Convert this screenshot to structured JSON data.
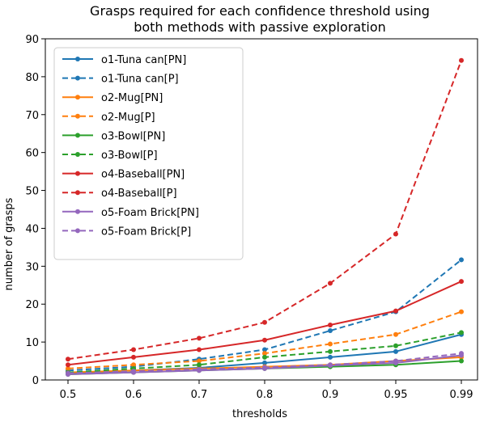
{
  "chart_data": {
    "type": "line",
    "title_line1": "Grasps required for each confidence threshold using",
    "title_line2": "both methods with passive exploration",
    "xlabel": "thresholds",
    "ylabel": "number of grasps",
    "categories": [
      "0.5",
      "0.6",
      "0.7",
      "0.8",
      "0.9",
      "0.95",
      "0.99"
    ],
    "ylim": [
      0,
      90
    ],
    "yticks": [
      0,
      10,
      20,
      30,
      40,
      50,
      60,
      70,
      80,
      90
    ],
    "grid": false,
    "legend_position": "top-left",
    "series": [
      {
        "name": "o1-Tuna can[PN]",
        "color": "#1f77b4",
        "dash": false,
        "values": [
          1.8,
          2.5,
          3.2,
          4.5,
          6.0,
          7.5,
          12.0
        ]
      },
      {
        "name": "o1-Tuna can[P]",
        "color": "#1f77b4",
        "dash": true,
        "values": [
          2.5,
          3.5,
          5.5,
          8.0,
          13.0,
          18.0,
          31.7
        ]
      },
      {
        "name": "o2-Mug[PN]",
        "color": "#ff7f0e",
        "dash": false,
        "values": [
          2.0,
          2.5,
          3.0,
          3.5,
          4.0,
          5.0,
          6.0
        ]
      },
      {
        "name": "o2-Mug[P]",
        "color": "#ff7f0e",
        "dash": true,
        "values": [
          3.0,
          4.0,
          5.0,
          7.0,
          9.5,
          12.0,
          18.0
        ]
      },
      {
        "name": "o3-Bowl[PN]",
        "color": "#2ca02c",
        "dash": false,
        "values": [
          1.5,
          2.0,
          2.5,
          3.0,
          3.5,
          4.0,
          5.0
        ]
      },
      {
        "name": "o3-Bowl[P]",
        "color": "#2ca02c",
        "dash": true,
        "values": [
          2.0,
          3.0,
          4.0,
          6.0,
          7.5,
          9.0,
          12.5
        ]
      },
      {
        "name": "o4-Baseball[PN]",
        "color": "#d62728",
        "dash": false,
        "values": [
          4.0,
          6.0,
          8.0,
          10.5,
          14.5,
          18.2,
          26.0
        ]
      },
      {
        "name": "o4-Baseball[P]",
        "color": "#d62728",
        "dash": true,
        "values": [
          5.5,
          8.0,
          11.0,
          15.2,
          25.5,
          38.5,
          84.3
        ]
      },
      {
        "name": "o5-Foam Brick[PN]",
        "color": "#9467bd",
        "dash": false,
        "values": [
          1.5,
          2.0,
          2.5,
          3.0,
          3.8,
          4.5,
          6.5
        ]
      },
      {
        "name": "o5-Foam Brick[P]",
        "color": "#9467bd",
        "dash": true,
        "values": [
          1.8,
          2.3,
          2.8,
          3.3,
          4.0,
          5.0,
          7.0
        ]
      }
    ]
  }
}
